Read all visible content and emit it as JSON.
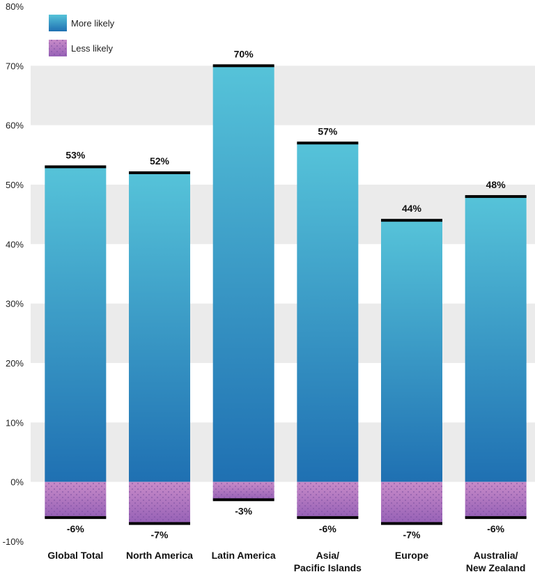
{
  "chart_data": {
    "type": "bar",
    "categories": [
      [
        "Global Total"
      ],
      [
        "North America"
      ],
      [
        "Latin America"
      ],
      [
        "Asia/",
        "Pacific Islands"
      ],
      [
        "Europe"
      ],
      [
        "Australia/",
        "New Zealand"
      ]
    ],
    "series": [
      {
        "name": "More likely",
        "values": [
          53,
          52,
          70,
          57,
          44,
          48
        ],
        "labels": [
          "53%",
          "52%",
          "70%",
          "57%",
          "44%",
          "48%"
        ],
        "color_top": "#56c3d9",
        "color_bottom": "#1f70b2"
      },
      {
        "name": "Less likely",
        "values": [
          -6,
          -7,
          -3,
          -6,
          -7,
          -6
        ],
        "labels": [
          "-6%",
          "-7%",
          "-3%",
          "-6%",
          "-7%",
          "-6%"
        ],
        "color_top": "#c88bc8",
        "color_bottom": "#9661b6"
      }
    ],
    "ylim": [
      -10,
      80
    ],
    "yticks": [
      -10,
      0,
      10,
      20,
      30,
      40,
      50,
      60,
      70,
      80
    ],
    "ytick_labels": [
      "-10%",
      "0%",
      "10%",
      "20%",
      "30%",
      "40%",
      "50%",
      "60%",
      "70%",
      "80%"
    ],
    "grid": "alternating bands",
    "band_color": "#ebebeb",
    "cap_color": "#000000",
    "legend_position": "top-left"
  }
}
